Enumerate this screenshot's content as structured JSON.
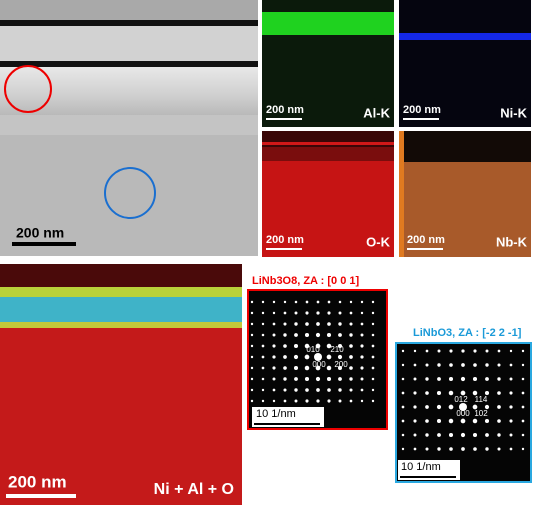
{
  "tem": {
    "scale_bar": "200 nm"
  },
  "maps": [
    {
      "label": "Al-K",
      "scale_bar": "200 nm"
    },
    {
      "label": "Ni-K",
      "scale_bar": "200 nm"
    },
    {
      "label": "O-K",
      "scale_bar": "200 nm"
    },
    {
      "label": "Nb-K",
      "scale_bar": "200 nm"
    }
  ],
  "overlay": {
    "label": "Ni + Al + O",
    "scale_bar": "200 nm"
  },
  "diffraction": [
    {
      "title": "LiNb3O8, ZA : [0 0 1]",
      "scale_bar": "10 1/nm",
      "indices": [
        "010",
        "210",
        "000",
        "200"
      ]
    },
    {
      "title": "LiNbO3, ZA : [-2 2 -1]",
      "scale_bar": "10 1/nm",
      "indices": [
        "012",
        "114",
        "000",
        "102"
      ]
    }
  ]
}
